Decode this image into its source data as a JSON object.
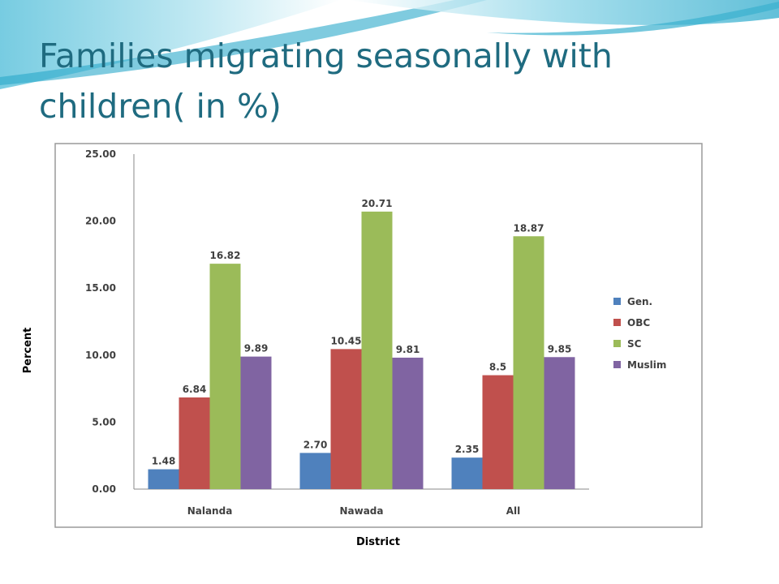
{
  "slide": {
    "title": "Families migrating seasonally with children( in %)",
    "accent_color": "#1f6b80"
  },
  "chart_data": {
    "type": "bar",
    "title": "",
    "xlabel": "District",
    "ylabel": "Percent",
    "ylim": [
      0,
      25
    ],
    "yticks": [
      "0.00",
      "5.00",
      "10.00",
      "15.00",
      "20.00",
      "25.00"
    ],
    "categories": [
      "Nalanda",
      "Nawada",
      "All"
    ],
    "series": [
      {
        "name": "Gen.",
        "color": "#4f81bd",
        "values": [
          1.48,
          2.7,
          2.35
        ],
        "labels": [
          "1.48",
          "2.70",
          "2.35"
        ]
      },
      {
        "name": "OBC",
        "color": "#c0504d",
        "values": [
          6.84,
          10.45,
          8.5
        ],
        "labels": [
          "6.84",
          "10.45",
          "8.5"
        ]
      },
      {
        "name": "SC",
        "color": "#9bbb59",
        "values": [
          16.82,
          20.71,
          18.87
        ],
        "labels": [
          "16.82",
          "20.71",
          "18.87"
        ]
      },
      {
        "name": "Muslim",
        "color": "#8064a2",
        "values": [
          9.89,
          9.81,
          9.85
        ],
        "labels": [
          "9.89",
          "9.81",
          "9.85"
        ]
      }
    ],
    "grid": false,
    "legend_position": "right"
  }
}
